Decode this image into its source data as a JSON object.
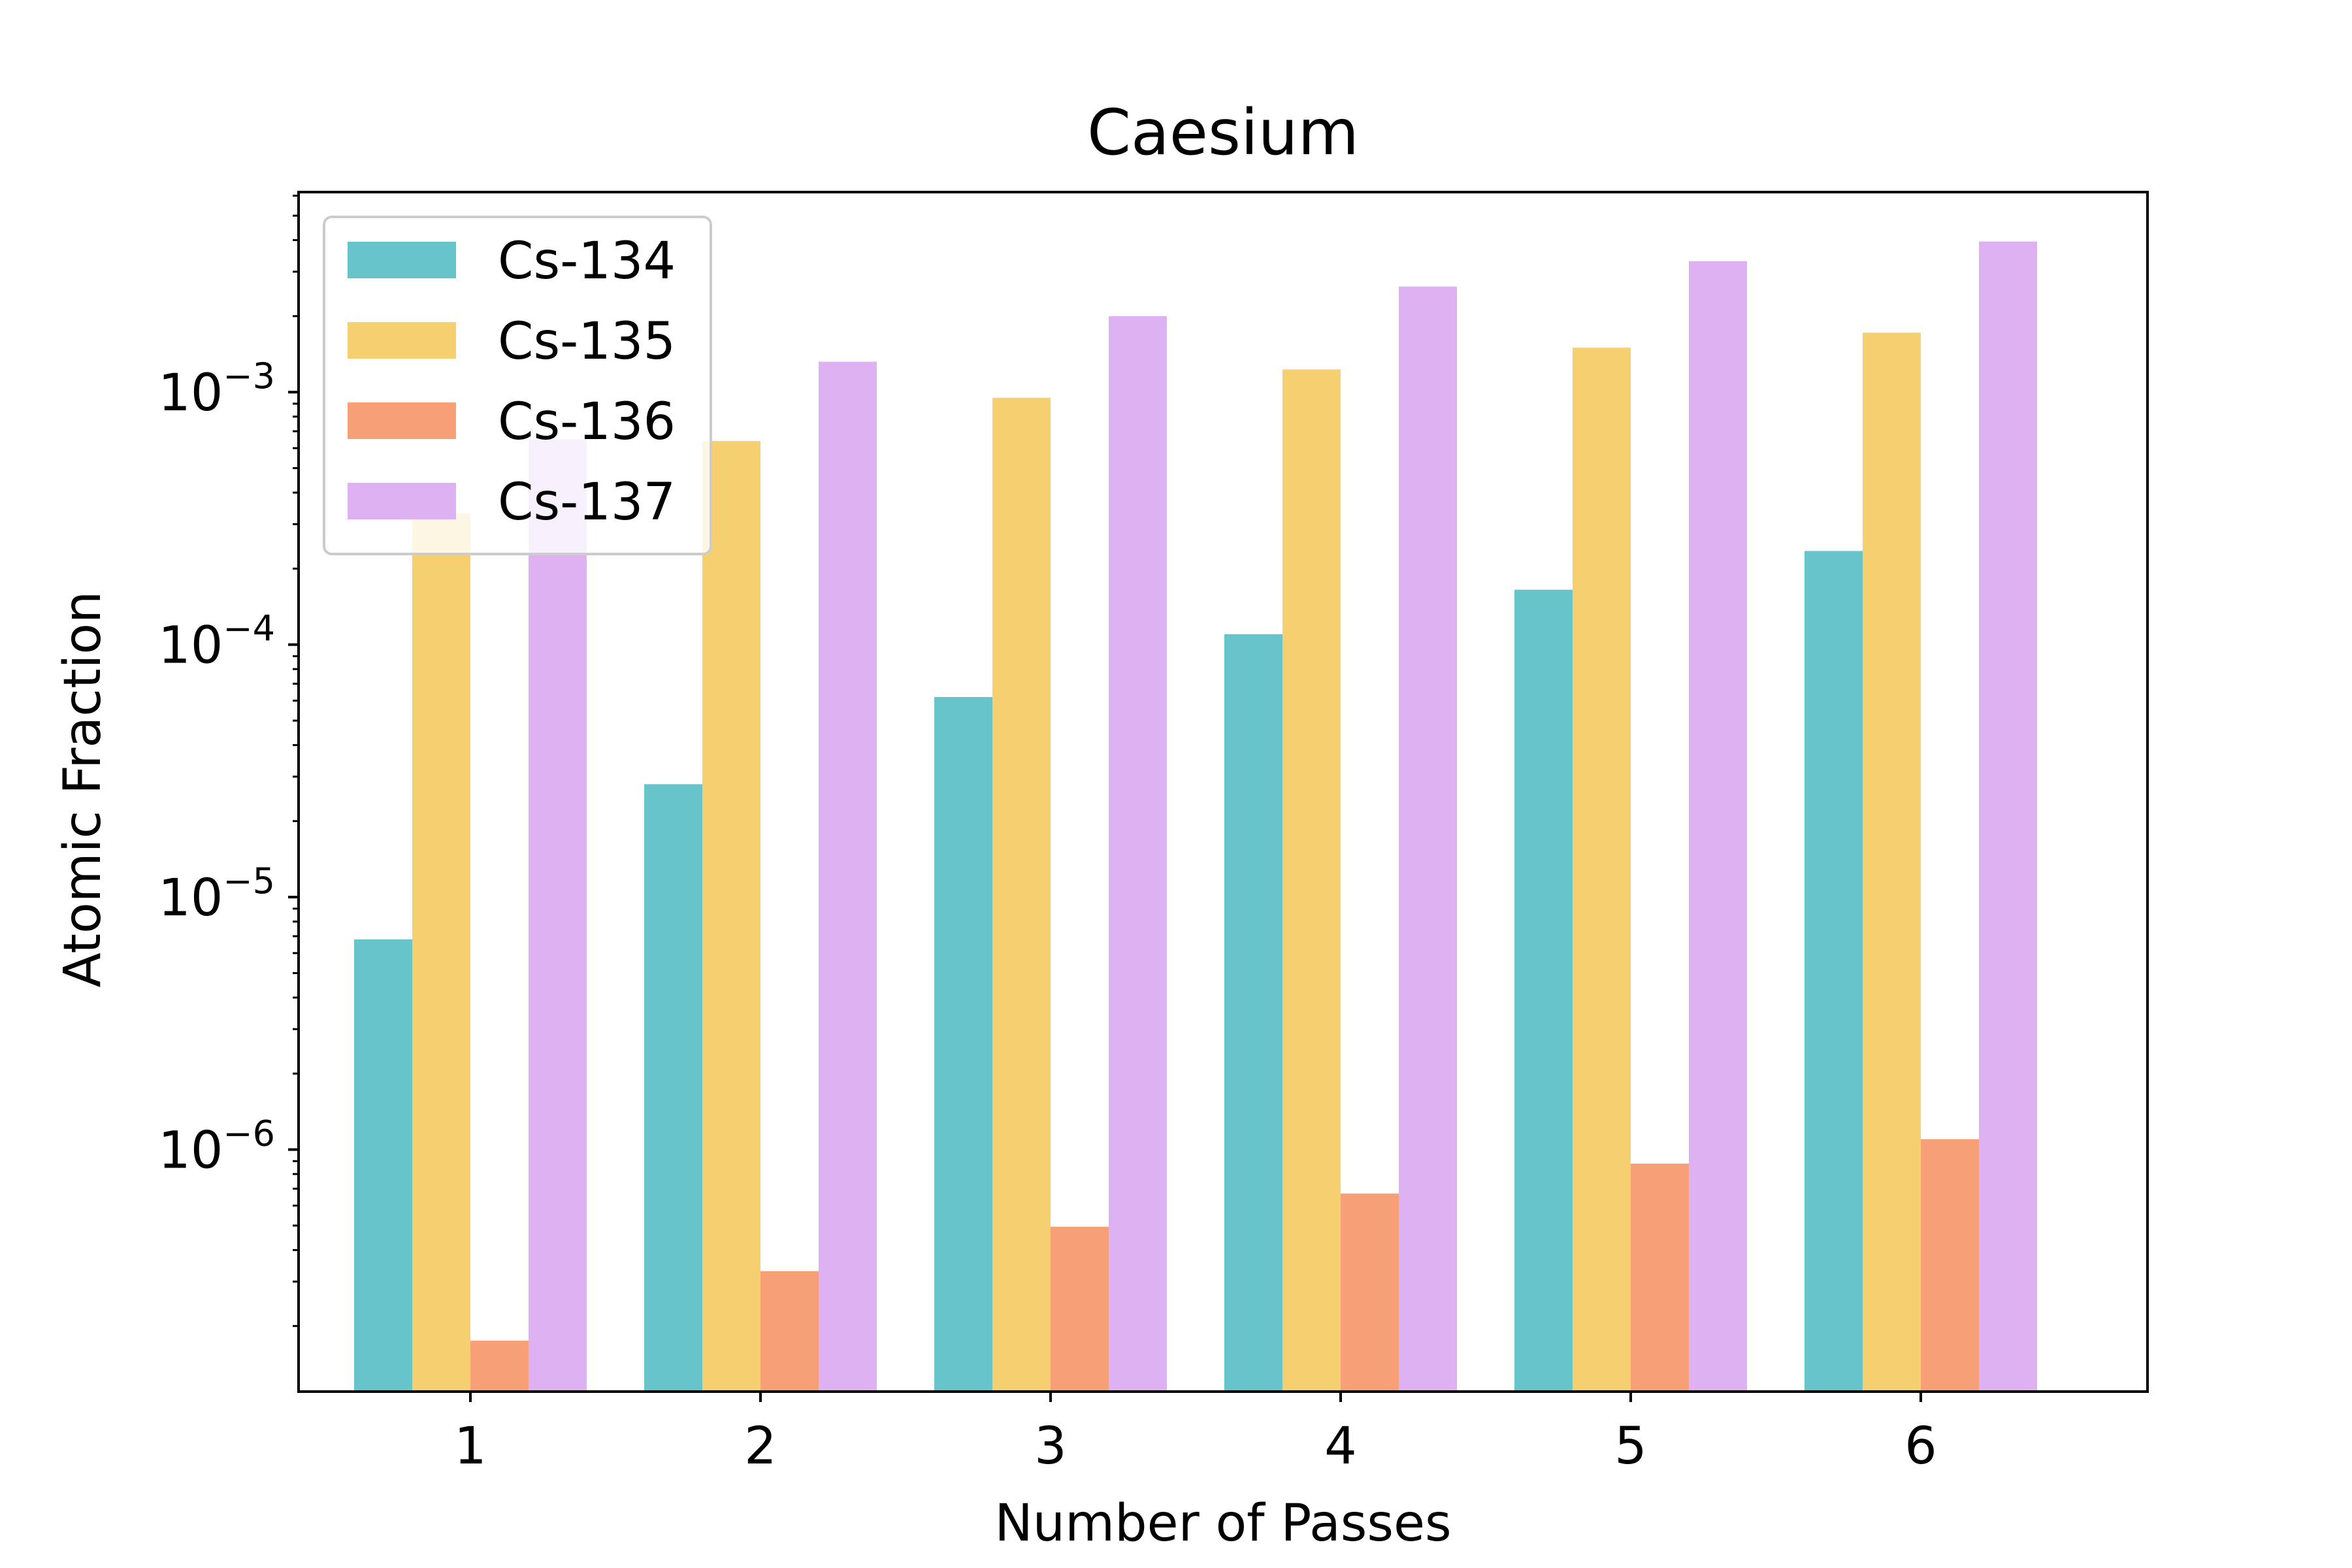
{
  "chart_data": {
    "type": "bar",
    "title": "Caesium",
    "xlabel": "Number of Passes",
    "ylabel": "Atomic Fraction",
    "categories": [
      "1",
      "2",
      "3",
      "4",
      "5",
      "6"
    ],
    "yscale": "log",
    "ylim": [
      1.1e-07,
      0.0062
    ],
    "y_ticks": [
      {
        "value": 1e-06,
        "label": "10",
        "exponent": "−6"
      },
      {
        "value": 1e-05,
        "label": "10",
        "exponent": "−5"
      },
      {
        "value": 0.0001,
        "label": "10",
        "exponent": "−4"
      },
      {
        "value": 0.001,
        "label": "10",
        "exponent": "−3"
      }
    ],
    "grid": false,
    "legend_position": "top-left",
    "series": [
      {
        "name": "Cs-134",
        "color": "#67c4cb",
        "values": [
          6.8e-06,
          2.8e-05,
          6.2e-05,
          0.00011,
          0.000165,
          0.000235
        ]
      },
      {
        "name": "Cs-135",
        "color": "#f5cf70",
        "values": [
          0.00033,
          0.00064,
          0.00095,
          0.00123,
          0.0015,
          0.00172
        ]
      },
      {
        "name": "Cs-136",
        "color": "#f79f77",
        "values": [
          1.75e-07,
          3.3e-07,
          4.95e-07,
          6.7e-07,
          8.8e-07,
          1.1e-06
        ]
      },
      {
        "name": "Cs-137",
        "color": "#deb2f2",
        "values": [
          0.00065,
          0.00132,
          0.002,
          0.00262,
          0.0033,
          0.00395
        ]
      }
    ]
  }
}
